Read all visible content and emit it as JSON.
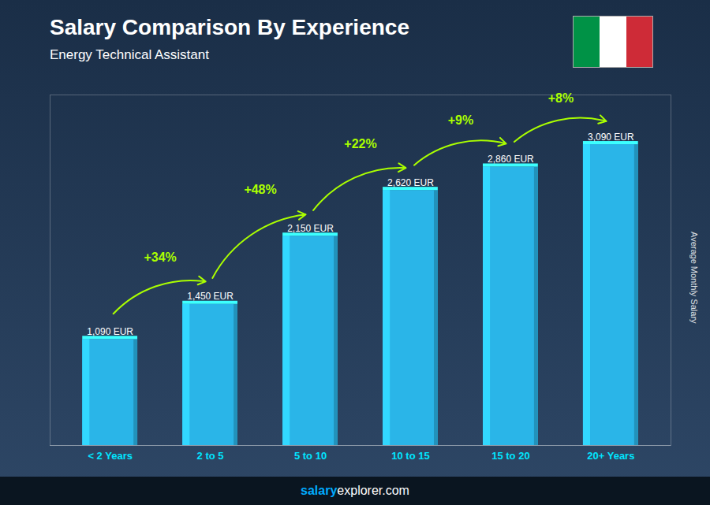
{
  "chart_data": {
    "type": "bar",
    "title": "Salary Comparison By Experience",
    "subtitle": "Energy Technical Assistant",
    "ylabel": "Average Monthly Salary",
    "categories": [
      "< 2 Years",
      "2 to 5",
      "5 to 10",
      "10 to 15",
      "15 to 20",
      "20+ Years"
    ],
    "values": [
      1090,
      1450,
      2150,
      2620,
      2860,
      3090
    ],
    "value_labels": [
      "1,090 EUR",
      "1,450 EUR",
      "2,150 EUR",
      "2,620 EUR",
      "2,860 EUR",
      "3,090 EUR"
    ],
    "data_labels": true,
    "color": "#2ab5e8",
    "ylim": [
      0,
      3600
    ],
    "tick_labels": "x",
    "annotations": [
      {
        "text": "+34%",
        "from": "< 2 Years",
        "to": "2 to 5",
        "color": "#aaff00"
      },
      {
        "text": "+48%",
        "from": "2 to 5",
        "to": "5 to 10",
        "color": "#aaff00"
      },
      {
        "text": "+22%",
        "from": "5 to 10",
        "to": "10 to 15",
        "color": "#aaff00"
      },
      {
        "text": "+9%",
        "from": "10 to 15",
        "to": "15 to 20",
        "color": "#aaff00"
      },
      {
        "text": "+8%",
        "from": "15 to 20",
        "to": "20+ Years",
        "color": "#aaff00"
      }
    ],
    "footer": [
      {
        "text": "salary",
        "color": "#00aaff"
      },
      {
        "text": "explorer.com",
        "color": "#ffffff"
      }
    ]
  }
}
